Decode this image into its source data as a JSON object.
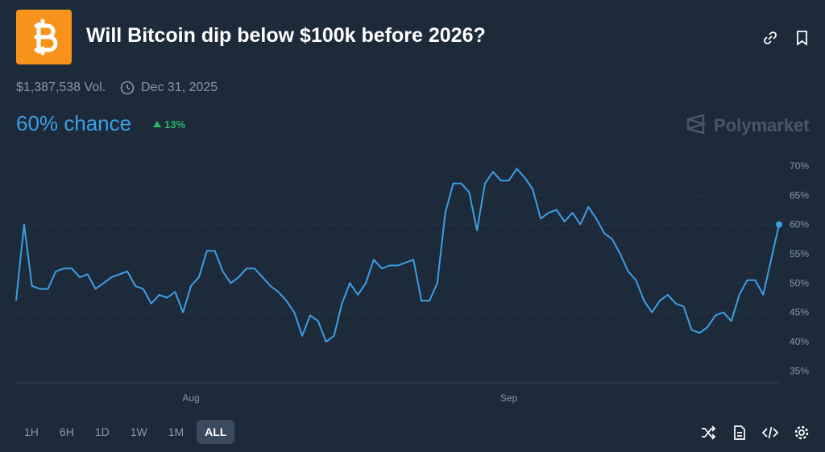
{
  "header": {
    "title": "Will Bitcoin dip below $100k before 2026?",
    "volume": "$1,387,538 Vol.",
    "end_date": "Dec 31, 2025",
    "chance": "60% chance",
    "change": "13%",
    "brand": "Polymarket"
  },
  "range_buttons": [
    "1H",
    "6H",
    "1D",
    "1W",
    "1M",
    "ALL"
  ],
  "active_range": "ALL",
  "chart_data": {
    "type": "line",
    "color": "#3d9ee4",
    "categories": [
      null,
      null,
      null,
      null,
      null,
      null,
      null,
      null,
      null,
      null,
      null,
      null,
      null,
      null,
      null,
      null,
      null,
      null,
      null,
      null,
      null,
      null,
      "Aug",
      null,
      null,
      null,
      null,
      null,
      null,
      null,
      null,
      null,
      null,
      null,
      null,
      null,
      null,
      null,
      null,
      null,
      null,
      null,
      null,
      null,
      null,
      null,
      null,
      null,
      null,
      null,
      null,
      null,
      null,
      null,
      null,
      null,
      null,
      null,
      null,
      null,
      null,
      null,
      "Sep",
      null,
      null,
      null,
      null,
      null,
      null,
      null,
      null,
      null,
      null,
      null,
      null,
      null,
      null,
      null,
      null,
      null,
      null,
      null,
      null,
      null,
      null,
      null,
      null,
      null,
      null,
      null,
      null,
      null,
      null,
      null,
      null,
      null,
      null
    ],
    "values": [
      47,
      60,
      49.5,
      49,
      49,
      52,
      52.5,
      52.5,
      51,
      51.5,
      49,
      50,
      51,
      51.5,
      52,
      49.5,
      49,
      46.5,
      48,
      47.5,
      48.5,
      45,
      49.5,
      51,
      55.5,
      55.5,
      52,
      50,
      51,
      52.5,
      52.5,
      51,
      49.5,
      48.5,
      47,
      45,
      41,
      44.5,
      43.5,
      40,
      41,
      46.5,
      50,
      48,
      50,
      54,
      52.5,
      53,
      53,
      53.5,
      54,
      47,
      47,
      50,
      62,
      67,
      67,
      65.5,
      59,
      67,
      69,
      67.5,
      67.5,
      69.5,
      68,
      66,
      61,
      62,
      62.5,
      60.5,
      62,
      60,
      63,
      61,
      58.5,
      57.5,
      55,
      52,
      50.5,
      47,
      45,
      47,
      48,
      46.5,
      46,
      42,
      41.5,
      42.5,
      44.5,
      45,
      43.5,
      48,
      50.5,
      50.5,
      48,
      54,
      60
    ],
    "ylim": [
      33,
      71.5
    ],
    "yticks": [
      {
        "value": 35,
        "label": "35%"
      },
      {
        "value": 40,
        "label": "40%"
      },
      {
        "value": 45,
        "label": "45%"
      },
      {
        "value": 50,
        "label": "50%"
      },
      {
        "value": 55,
        "label": "55%"
      },
      {
        "value": 60,
        "label": "60%"
      },
      {
        "value": 65,
        "label": "65%"
      },
      {
        "value": 70,
        "label": "70%"
      }
    ],
    "grid": true
  }
}
